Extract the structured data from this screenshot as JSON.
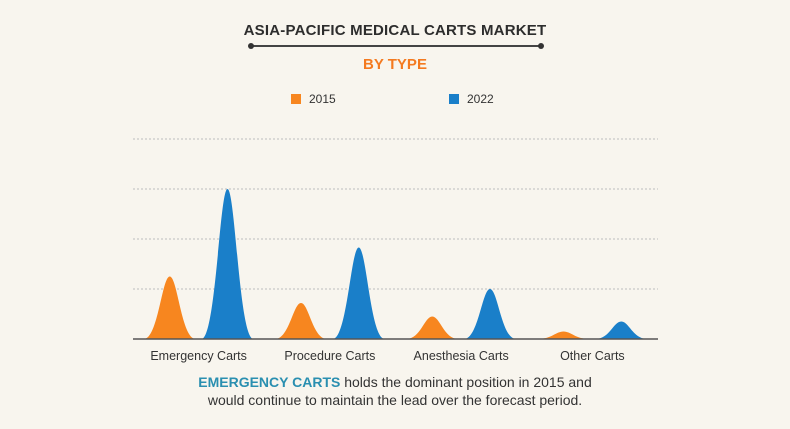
{
  "header": {
    "title": "ASIA-PACIFIC MEDICAL CARTS MARKET",
    "subtitle": "BY TYPE"
  },
  "caption": {
    "highlight": "EMERGENCY CARTS",
    "line1_rest": " holds the dominant position in 2015 and",
    "line2": "would continue to maintain the lead over the forecast period."
  },
  "colors": {
    "s2015": "#f7861f",
    "s2022": "#1a7fc9",
    "grid": "#bdbdbd",
    "axis": "#555555",
    "title": "#2d2d2d",
    "subtitle": "#f47a20",
    "highlight": "#2a8fb0"
  },
  "chart_data": {
    "type": "area",
    "title": "ASIA-PACIFIC MEDICAL CARTS MARKET",
    "subtitle": "BY TYPE",
    "xlabel": "",
    "ylabel": "",
    "categories": [
      "Emergency Carts",
      "Procedure Carts",
      "Anesthesia Carts",
      "Other Carts"
    ],
    "series": [
      {
        "name": "2015",
        "values": [
          1.25,
          0.72,
          0.45,
          0.15
        ]
      },
      {
        "name": "2022",
        "values": [
          3.0,
          1.83,
          1.0,
          0.35
        ]
      }
    ],
    "ylim": [
      0,
      4
    ],
    "grid": true,
    "legend": "top-center"
  }
}
